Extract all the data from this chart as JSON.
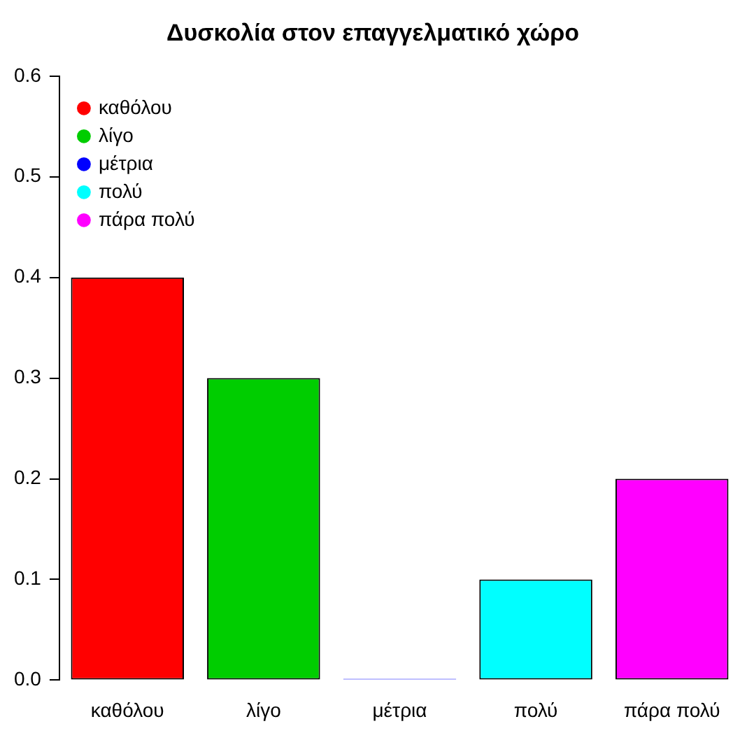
{
  "chart_data": {
    "type": "bar",
    "title": "Δυσκολία στον επαγγελματικό χώρο",
    "categories": [
      "καθόλου",
      "λίγο",
      "μέτρια",
      "πολύ",
      "πάρα πολύ"
    ],
    "series": [
      {
        "name": "καθόλου",
        "color": "#ff0000",
        "values": [
          0.4,
          null,
          null,
          null,
          null
        ]
      },
      {
        "name": "λίγο",
        "color": "#00cd00",
        "values": [
          null,
          0.3,
          null,
          null,
          null
        ]
      },
      {
        "name": "μέτρια",
        "color": "#0000ff",
        "values": [
          null,
          null,
          0,
          null,
          null
        ]
      },
      {
        "name": "πολύ",
        "color": "#00ffff",
        "values": [
          null,
          null,
          null,
          0.1,
          null
        ]
      },
      {
        "name": "πάρα πολύ",
        "color": "#ff00ff",
        "values": [
          null,
          null,
          null,
          null,
          0.2
        ]
      }
    ],
    "stacked": true,
    "ylim": [
      0,
      0.6
    ],
    "yticks": [
      {
        "value": 0,
        "label": "0.0"
      },
      {
        "value": 0.1,
        "label": "0.1"
      },
      {
        "value": 0.2,
        "label": "0.2"
      },
      {
        "value": 0.3,
        "label": "0.3"
      },
      {
        "value": 0.4,
        "label": "0.4"
      },
      {
        "value": 0.5,
        "label": "0.5"
      },
      {
        "value": 0.6,
        "label": "0.6"
      }
    ],
    "grid": false,
    "legend": "top left",
    "marker": "circle"
  }
}
